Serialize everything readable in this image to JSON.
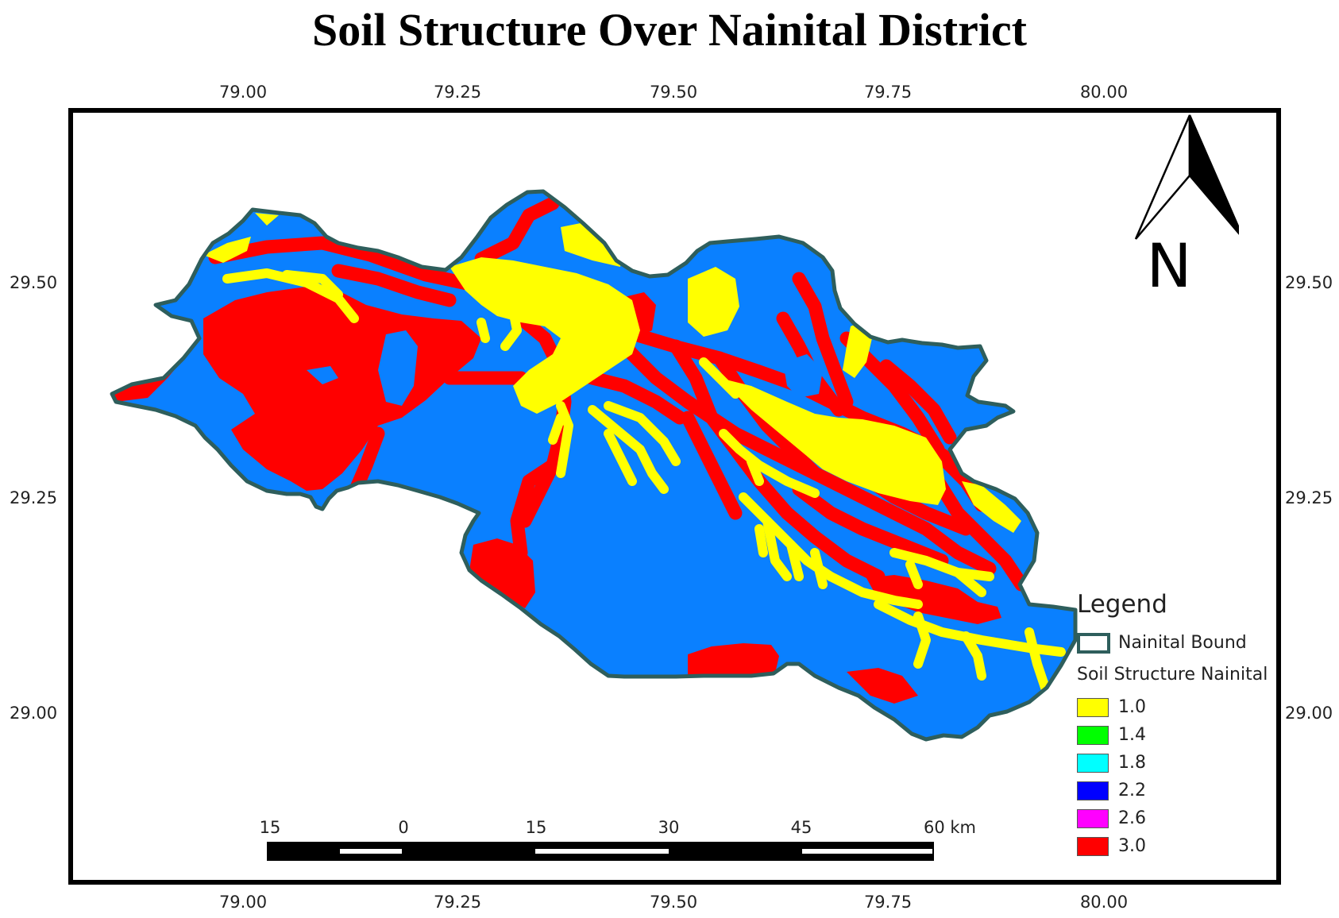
{
  "title": "Soil Structure Over Nainital District",
  "axes": {
    "x_ticks": [
      "79.00",
      "79.25",
      "79.50",
      "79.75",
      "80.00"
    ],
    "y_ticks": [
      "29.50",
      "29.25",
      "29.00"
    ]
  },
  "north_arrow": {
    "letter": "N"
  },
  "scalebar": {
    "labels": [
      "15",
      "0",
      "15",
      "30",
      "45",
      "60 km"
    ]
  },
  "legend": {
    "title": "Legend",
    "boundary_label": "Nainital Bound",
    "layer_title": "Soil Structure Nainital",
    "classes": [
      {
        "label": "1.0",
        "color": "#ffff00"
      },
      {
        "label": "1.4",
        "color": "#00ff00"
      },
      {
        "label": "1.8",
        "color": "#00ffff"
      },
      {
        "label": "2.2",
        "color": "#0000ff"
      },
      {
        "label": "2.6",
        "color": "#ff00ff"
      },
      {
        "label": "3.0",
        "color": "#ff0000"
      }
    ]
  },
  "colors": {
    "region_fill": "#0a80ff",
    "boundary": "#2e5e5c",
    "class_low": "#ffff00",
    "class_high": "#ff0000"
  }
}
